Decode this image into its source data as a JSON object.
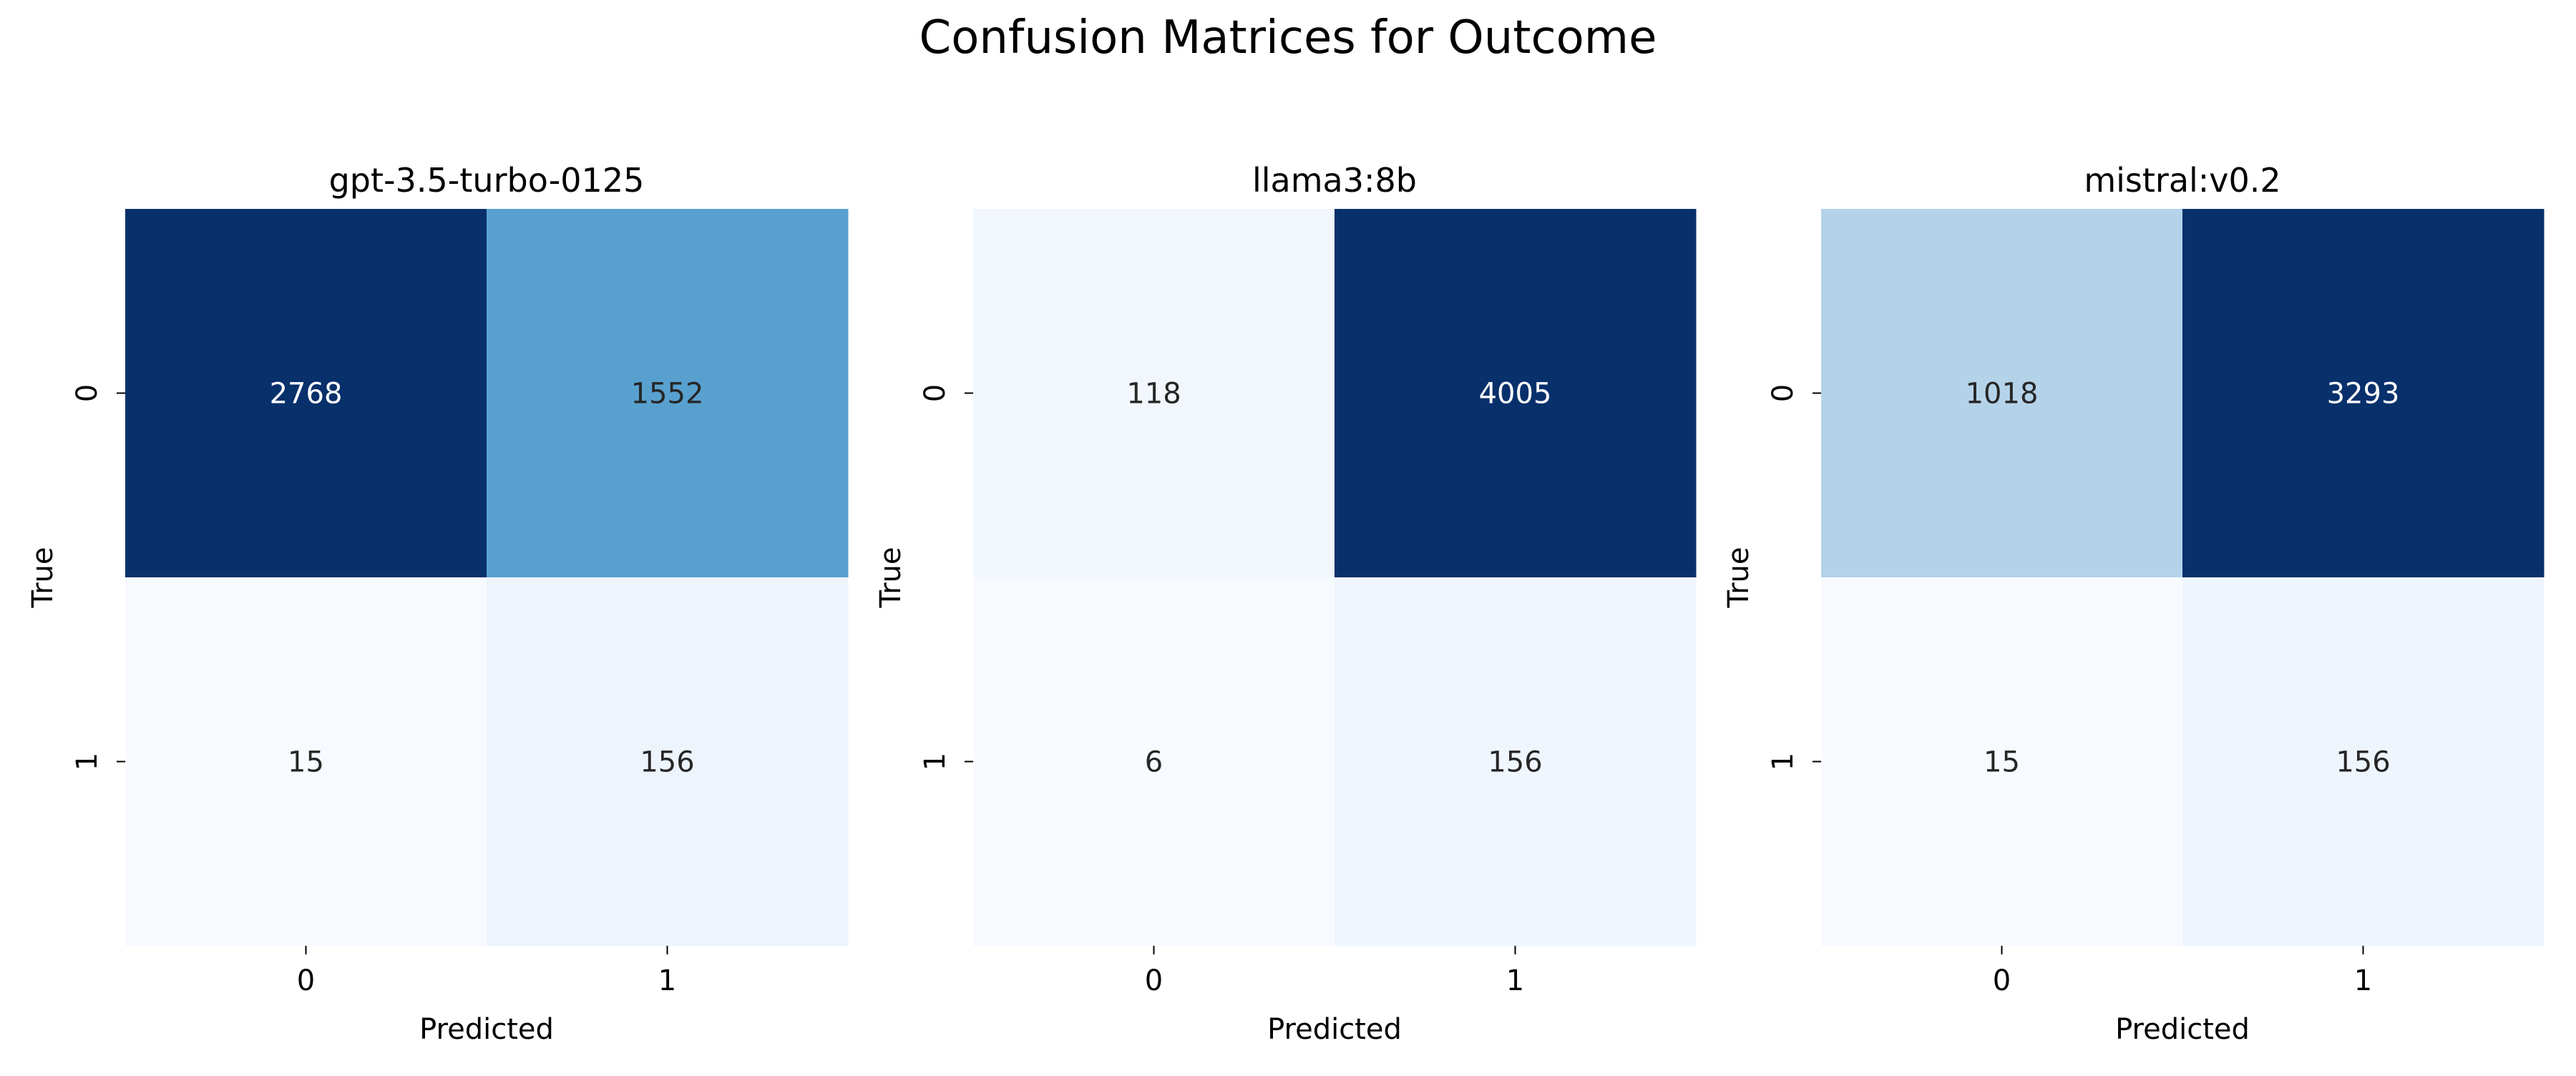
{
  "figure": {
    "title": "Confusion Matrices for Outcome"
  },
  "colors": {
    "text_dark": "#262626",
    "text_light": "#ffffff",
    "palette": "Blues",
    "low": "#f7fbff",
    "high": "#08306b"
  },
  "chart_data": [
    {
      "type": "heatmap",
      "title": "gpt-3.5-turbo-0125",
      "xlabel": "Predicted",
      "ylabel": "True",
      "x_ticklabels": [
        "0",
        "1"
      ],
      "y_ticklabels": [
        "0",
        "1"
      ],
      "values": [
        [
          2768,
          1552
        ],
        [
          15,
          156
        ]
      ],
      "colorbar": false
    },
    {
      "type": "heatmap",
      "title": "llama3:8b",
      "xlabel": "Predicted",
      "ylabel": "True",
      "x_ticklabels": [
        "0",
        "1"
      ],
      "y_ticklabels": [
        "0",
        "1"
      ],
      "values": [
        [
          118,
          4005
        ],
        [
          6,
          156
        ]
      ],
      "colorbar": false
    },
    {
      "type": "heatmap",
      "title": "mistral:v0.2",
      "xlabel": "Predicted",
      "ylabel": "True",
      "x_ticklabels": [
        "0",
        "1"
      ],
      "y_ticklabels": [
        "0",
        "1"
      ],
      "values": [
        [
          1018,
          3293
        ],
        [
          15,
          156
        ]
      ],
      "colorbar": false
    }
  ]
}
